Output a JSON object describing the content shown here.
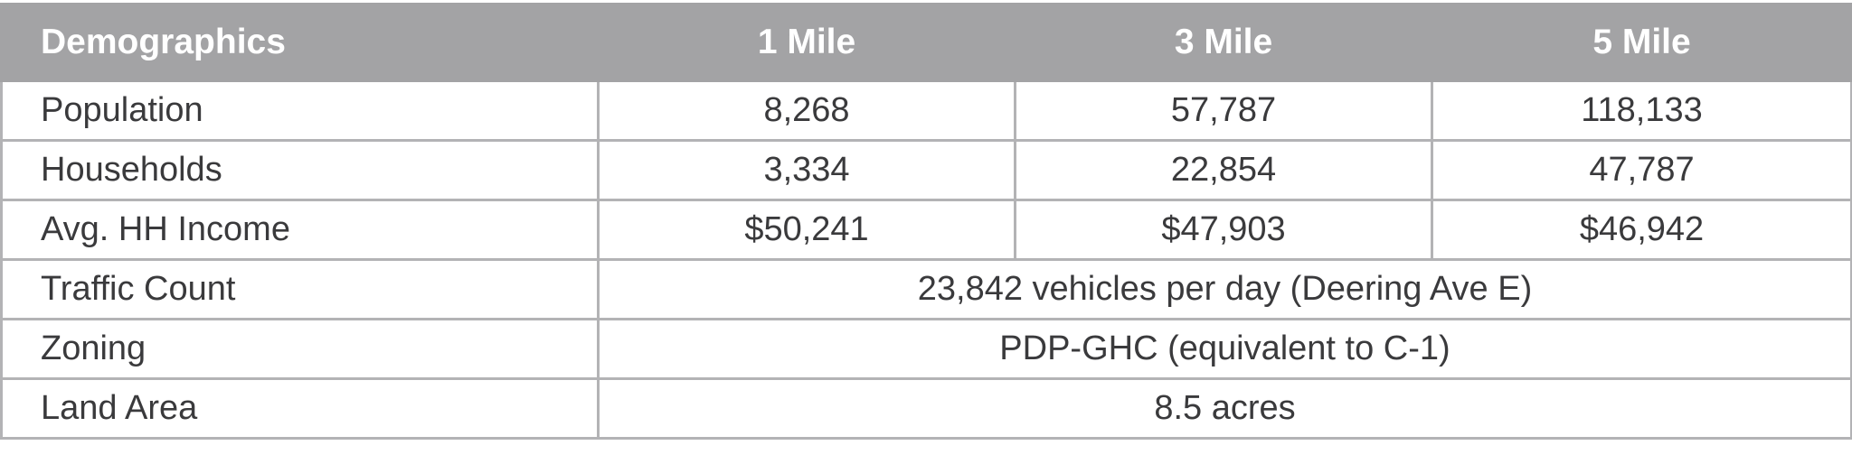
{
  "table": {
    "headers": [
      "Demographics",
      "1 Mile",
      "3 Mile",
      "5 Mile"
    ],
    "rows": [
      {
        "label": "Population",
        "values": [
          "8,268",
          "57,787",
          "118,133"
        ]
      },
      {
        "label": "Households",
        "values": [
          "3,334",
          "22,854",
          "47,787"
        ]
      },
      {
        "label": "Avg. HH Income",
        "values": [
          "$50,241",
          "$47,903",
          "$46,942"
        ]
      },
      {
        "label": "Traffic Count",
        "value": "23,842 vehicles per day (Deering Ave E)"
      },
      {
        "label": "Zoning",
        "value": "PDP-GHC (equivalent to C-1)"
      },
      {
        "label": "Land Area",
        "value": "8.5 acres"
      }
    ]
  },
  "colors": {
    "header_bg": "#a3a3a5",
    "header_text": "#ffffff",
    "body_text": "#3a3a3c",
    "grid": "#b3b3b5"
  }
}
